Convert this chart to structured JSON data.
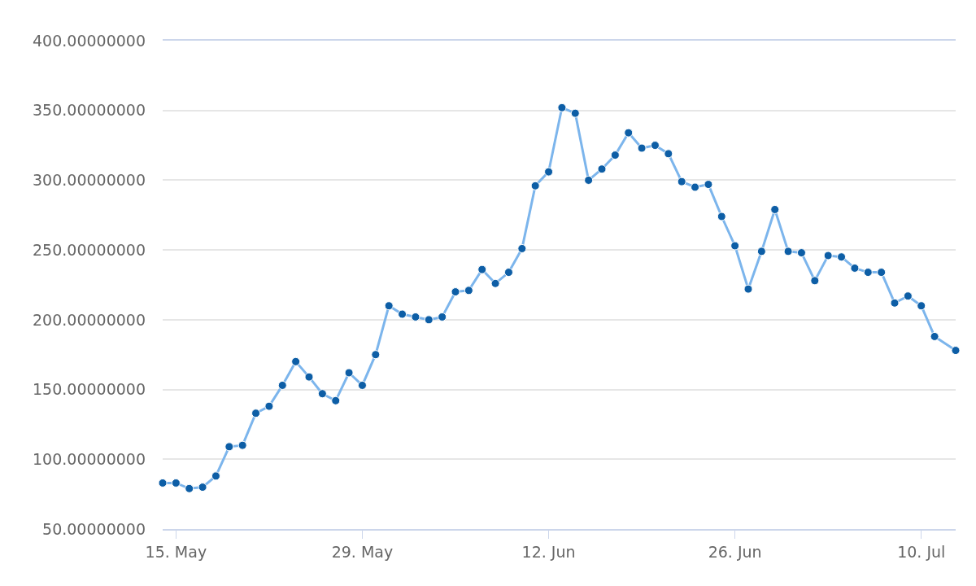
{
  "chart_data": {
    "type": "line",
    "marker": "circle",
    "line_style": "solid",
    "grid": "y",
    "x": [
      "--05-14",
      "--05-15",
      "--05-16",
      "--05-17",
      "--05-18",
      "--05-19",
      "--05-20",
      "--05-21",
      "--05-22",
      "--05-23",
      "--05-24",
      "--05-25",
      "--05-26",
      "--05-27",
      "--05-28",
      "--05-29",
      "--05-30",
      "--05-31",
      "--06-01",
      "--06-02",
      "--06-03",
      "--06-04",
      "--06-05",
      "--06-06",
      "--06-07",
      "--06-08",
      "--06-09",
      "--06-10",
      "--06-11",
      "--06-12",
      "--06-13",
      "--06-14",
      "--06-15",
      "--06-16",
      "--06-17",
      "--06-18",
      "--06-19",
      "--06-20",
      "--06-21",
      "--06-22",
      "--06-23",
      "--06-24",
      "--06-25",
      "--06-26",
      "--06-27",
      "--06-28",
      "--06-29",
      "--06-30",
      "--07-01",
      "--07-02",
      "--07-03",
      "--07-04",
      "--07-05",
      "--07-06",
      "--07-07",
      "--07-08",
      "--07-09",
      "--07-10",
      "--07-11",
      "--07-12T14:00"
    ],
    "series": [
      {
        "color": "#7cb5ec",
        "colors": [
          "#0d5ea6",
          "#0d5ea6",
          "#0d5ea6",
          "#0d5ea6",
          "#0d5ea6",
          "#0d5ea6",
          "#0d5ea6",
          "#0d5ea6",
          "#0d5ea6",
          "#0d5ea6",
          "#0d5ea6",
          "#0d5ea6",
          "#0d5ea6",
          "#0d5ea6",
          "#0d5ea6",
          "#0d5ea6",
          "#0d5ea6",
          "#0d5ea6",
          "#0d5ea6",
          "#0d5ea6",
          "#0d5ea6",
          "#0d5ea6",
          "#0d5ea6",
          "#0d5ea6",
          "#0d5ea6",
          "#0d5ea6",
          "#0d5ea6",
          "#0d5ea6",
          "#0d5ea6",
          "#0d5ea6",
          "#0d5ea6",
          "#0d5ea6",
          "#0d5ea6",
          "#0d5ea6",
          "#0d5ea6",
          "#0d5ea6",
          "#0d5ea6",
          "#0d5ea6",
          "#0d5ea6",
          "#0d5ea6",
          "#0d5ea6",
          "#0d5ea6",
          "#0d5ea6",
          "#0d5ea6",
          "#0d5ea6",
          "#0d5ea6",
          "#0d5ea6",
          "#0d5ea6",
          "#0d5ea6",
          "#0d5ea6",
          "#0d5ea6",
          "#0d5ea6",
          "#0d5ea6",
          "#0d5ea6",
          "#0d5ea6",
          "#0d5ea6",
          "#0d5ea6",
          "#0d5ea6",
          "#0d5ea6",
          "#0d5ea6"
        ],
        "values": [
          83,
          83,
          79,
          80,
          88,
          109,
          110,
          133,
          138,
          153,
          170,
          159,
          147,
          142,
          162,
          153,
          175,
          210,
          204,
          202,
          200,
          202,
          220,
          221,
          236,
          226,
          234,
          251,
          296,
          306,
          352,
          348,
          300,
          308,
          318,
          334,
          323,
          325,
          319,
          299,
          295,
          297,
          274,
          253,
          222,
          249,
          279,
          249,
          248,
          228,
          246,
          245,
          237,
          234,
          234,
          212,
          217,
          210,
          188,
          178
        ]
      }
    ],
    "xlim": [
      "--05-14",
      "--07-12T14:00"
    ],
    "xticks": [
      {
        "value": "--05-15",
        "label": "15. May"
      },
      {
        "value": "--05-29",
        "label": "29. May"
      },
      {
        "value": "--06-12",
        "label": "12. Jun"
      },
      {
        "value": "--06-26",
        "label": "26. Jun"
      },
      {
        "value": "--07-10",
        "label": "10. Jul"
      }
    ],
    "ylim": [
      50,
      400
    ],
    "yticks": [
      {
        "value": 50,
        "label": "50.00000000"
      },
      {
        "value": 100,
        "label": "100.00000000"
      },
      {
        "value": 150,
        "label": "150.00000000"
      },
      {
        "value": 200,
        "label": "200.00000000"
      },
      {
        "value": 250,
        "label": "250.00000000"
      },
      {
        "value": 300,
        "label": "300.00000000"
      },
      {
        "value": 350,
        "label": "350.00000000"
      },
      {
        "value": 400,
        "label": "400.00000000"
      }
    ]
  }
}
